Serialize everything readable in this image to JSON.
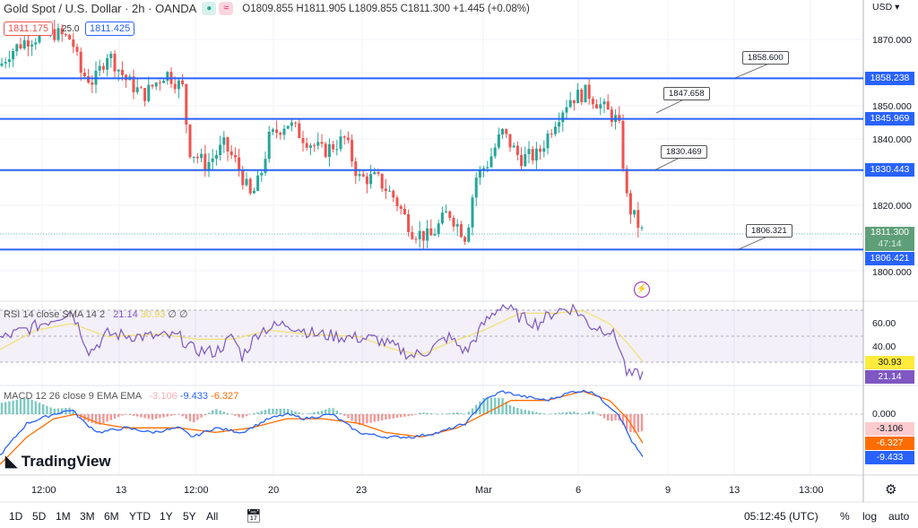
{
  "header": {
    "symbol": "Gold Spot / U.S. Dollar · 2h · OANDA",
    "ohlc": "O1809.855 H1811.905 L1809.855 C1811.300 +1.445 (+0.08%)",
    "sell_price": "1811.175",
    "spread": "25.0",
    "buy_price": "1811.425"
  },
  "axis": {
    "currency": "USD ▾",
    "price_ticks": [
      "1870.000",
      "1850.000",
      "1840.000",
      "1820.000",
      "1800.000"
    ],
    "rsi_ticks": [
      "60.00",
      "40.00"
    ],
    "macd_ticks": [
      "0.000"
    ]
  },
  "levels": [
    {
      "price": 1858.238,
      "label": "1858.238",
      "callout": "1858.600"
    },
    {
      "price": 1845.969,
      "label": "1845.969",
      "callout": "1847.658"
    },
    {
      "price": 1830.443,
      "label": "1830.443",
      "callout": "1830.469"
    },
    {
      "price": 1806.421,
      "label": "1806.421",
      "callout": "1806.321"
    }
  ],
  "last_price": {
    "value": "1811.300",
    "countdown": "47:14"
  },
  "rsi": {
    "legend": "RSI 14 close SMA 14 2",
    "rsi_value": "21.14",
    "sma_value": "30.93",
    "extra": "∅ ∅"
  },
  "macd": {
    "legend": "MACD 12 26 close 9 EMA EMA",
    "hist": "-3.106",
    "macd": "-9.433",
    "signal": "-6.327"
  },
  "time_labels": [
    "12:00",
    "13",
    "12:00",
    "20",
    "23",
    "Mar",
    "6",
    "9",
    "13",
    "13:00"
  ],
  "bottom": {
    "ranges": [
      "1D",
      "5D",
      "1M",
      "3M",
      "6M",
      "YTD",
      "1Y",
      "5Y",
      "All"
    ],
    "clock": "05:12:45 (UTC)",
    "percent": "%",
    "log": "log",
    "auto": "auto"
  },
  "logo": "TradingView",
  "colors": {
    "up": "#26a69a",
    "down": "#ef5350",
    "level": "#2962ff",
    "rsi": "#7e57c2",
    "rsi_sma": "#f2e07a",
    "macd": "#2962ff",
    "signal": "#ff6d00"
  },
  "chart_data": {
    "type": "candlestick",
    "price_keypoints": [
      [
        0,
        1862
      ],
      [
        10,
        1866
      ],
      [
        30,
        1870
      ],
      [
        60,
        1872
      ],
      [
        80,
        1870
      ],
      [
        90,
        1860
      ],
      [
        105,
        1857
      ],
      [
        120,
        1866
      ],
      [
        140,
        1858
      ],
      [
        160,
        1853
      ],
      [
        185,
        1860
      ],
      [
        205,
        1855
      ],
      [
        210,
        1837
      ],
      [
        230,
        1832
      ],
      [
        250,
        1838
      ],
      [
        265,
        1832
      ],
      [
        280,
        1822
      ],
      [
        290,
        1828
      ],
      [
        300,
        1840
      ],
      [
        320,
        1845
      ],
      [
        340,
        1840
      ],
      [
        360,
        1836
      ],
      [
        385,
        1840
      ],
      [
        400,
        1828
      ],
      [
        420,
        1828
      ],
      [
        440,
        1822
      ],
      [
        460,
        1812
      ],
      [
        480,
        1810
      ],
      [
        500,
        1818
      ],
      [
        520,
        1810
      ],
      [
        530,
        1828
      ],
      [
        545,
        1833
      ],
      [
        560,
        1842
      ],
      [
        580,
        1834
      ],
      [
        600,
        1835
      ],
      [
        620,
        1846
      ],
      [
        635,
        1852
      ],
      [
        655,
        1854
      ],
      [
        670,
        1850
      ],
      [
        690,
        1845
      ],
      [
        700,
        1820
      ],
      [
        717,
        1811.3
      ]
    ],
    "rsi_keypoints": [
      [
        0,
        48
      ],
      [
        15,
        52
      ],
      [
        40,
        58
      ],
      [
        80,
        70
      ],
      [
        100,
        38
      ],
      [
        120,
        52
      ],
      [
        160,
        50
      ],
      [
        200,
        50
      ],
      [
        215,
        40
      ],
      [
        240,
        38
      ],
      [
        260,
        50
      ],
      [
        270,
        35
      ],
      [
        290,
        55
      ],
      [
        320,
        60
      ],
      [
        350,
        52
      ],
      [
        380,
        50
      ],
      [
        420,
        48
      ],
      [
        440,
        42
      ],
      [
        460,
        35
      ],
      [
        480,
        40
      ],
      [
        500,
        50
      ],
      [
        520,
        38
      ],
      [
        540,
        60
      ],
      [
        560,
        75
      ],
      [
        580,
        65
      ],
      [
        600,
        60
      ],
      [
        620,
        70
      ],
      [
        640,
        72
      ],
      [
        660,
        58
      ],
      [
        680,
        55
      ],
      [
        690,
        45
      ],
      [
        700,
        20
      ],
      [
        717,
        21.14
      ]
    ],
    "rsi_sma_keypoints": [
      [
        0,
        40
      ],
      [
        40,
        55
      ],
      [
        80,
        60
      ],
      [
        120,
        50
      ],
      [
        180,
        52
      ],
      [
        220,
        48
      ],
      [
        260,
        48
      ],
      [
        300,
        55
      ],
      [
        340,
        52
      ],
      [
        400,
        50
      ],
      [
        440,
        40
      ],
      [
        470,
        36
      ],
      [
        500,
        45
      ],
      [
        540,
        55
      ],
      [
        580,
        68
      ],
      [
        620,
        68
      ],
      [
        650,
        70
      ],
      [
        680,
        60
      ],
      [
        700,
        45
      ],
      [
        717,
        30.93
      ]
    ],
    "macd_keypoints": [
      [
        0,
        -9
      ],
      [
        30,
        -2
      ],
      [
        60,
        0
      ],
      [
        80,
        1
      ],
      [
        95,
        -2
      ],
      [
        110,
        -4
      ],
      [
        140,
        -3
      ],
      [
        170,
        -4
      ],
      [
        200,
        -3
      ],
      [
        215,
        -5
      ],
      [
        240,
        -3
      ],
      [
        270,
        -4
      ],
      [
        300,
        -1
      ],
      [
        320,
        0
      ],
      [
        340,
        -1
      ],
      [
        370,
        0
      ],
      [
        400,
        -4
      ],
      [
        430,
        -5
      ],
      [
        460,
        -5
      ],
      [
        490,
        -4
      ],
      [
        520,
        -2
      ],
      [
        540,
        3
      ],
      [
        560,
        5
      ],
      [
        580,
        4
      ],
      [
        610,
        3
      ],
      [
        640,
        5
      ],
      [
        660,
        5
      ],
      [
        690,
        0
      ],
      [
        705,
        -6
      ],
      [
        717,
        -9.433
      ]
    ],
    "signal_keypoints": [
      [
        0,
        -11
      ],
      [
        30,
        -5
      ],
      [
        60,
        -1
      ],
      [
        85,
        0
      ],
      [
        110,
        -2
      ],
      [
        140,
        -3
      ],
      [
        200,
        -3
      ],
      [
        240,
        -4
      ],
      [
        280,
        -3
      ],
      [
        320,
        -1
      ],
      [
        360,
        -1
      ],
      [
        400,
        -2
      ],
      [
        430,
        -4
      ],
      [
        470,
        -5
      ],
      [
        510,
        -3
      ],
      [
        540,
        0
      ],
      [
        570,
        3
      ],
      [
        610,
        3
      ],
      [
        650,
        5
      ],
      [
        680,
        3
      ],
      [
        700,
        -1
      ],
      [
        717,
        -6.327
      ]
    ]
  }
}
